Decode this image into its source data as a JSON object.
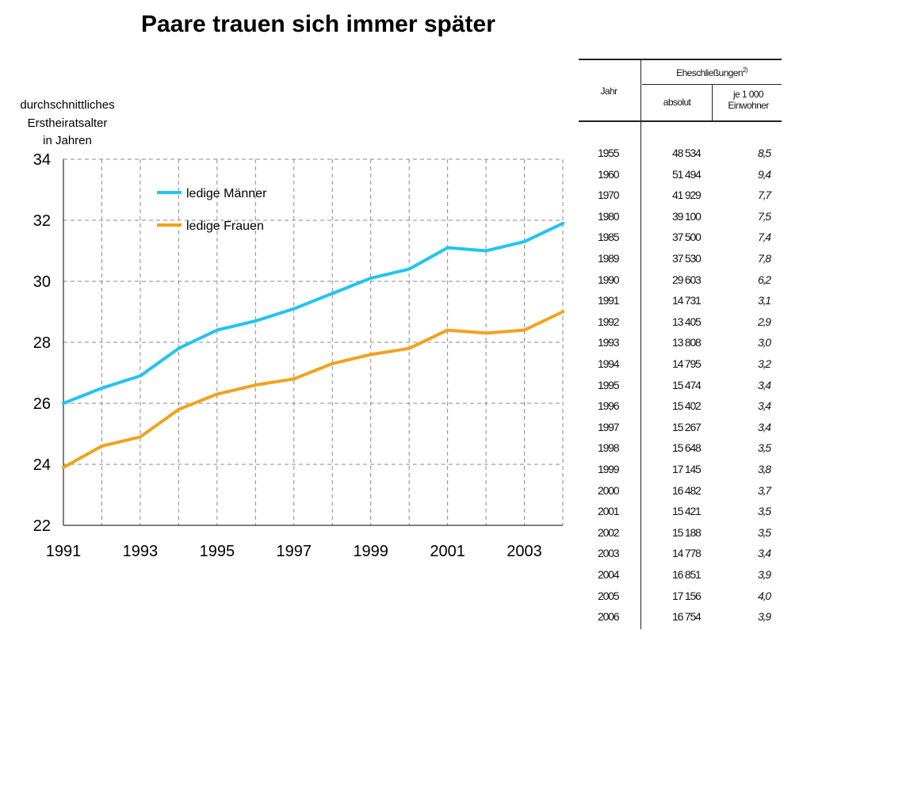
{
  "title": "Paare trauen sich immer später",
  "chart_data": {
    "type": "line",
    "title": "Paare trauen sich immer später",
    "ylabel_lines": [
      "durchschnittliches",
      "Erstheiratsalter",
      "in Jahren"
    ],
    "xlabel": "",
    "x": [
      1991,
      1992,
      1993,
      1994,
      1995,
      1996,
      1997,
      1998,
      1999,
      2000,
      2001,
      2002,
      2003,
      2004
    ],
    "x_tick_labels": [
      "1991",
      "1993",
      "1995",
      "1997",
      "1999",
      "2001",
      "2003"
    ],
    "y_ticks": [
      22,
      24,
      26,
      28,
      30,
      32,
      34
    ],
    "ylim": [
      22,
      34
    ],
    "grid": true,
    "legend_position": "top-left",
    "series": [
      {
        "name": "ledige Männer",
        "color": "#22c4ef",
        "values": [
          26.0,
          26.5,
          26.9,
          27.8,
          28.4,
          28.7,
          29.1,
          29.6,
          30.1,
          30.4,
          31.1,
          31.0,
          31.3,
          31.9
        ]
      },
      {
        "name": "ledige Frauen",
        "color": "#f2a21e",
        "values": [
          23.9,
          24.6,
          24.9,
          25.8,
          26.3,
          26.6,
          26.8,
          27.3,
          27.6,
          27.8,
          28.4,
          28.3,
          28.4,
          29.0
        ]
      }
    ]
  },
  "table": {
    "col_year": "Jahr",
    "col_group": "Eheschließungen",
    "col_group_note": "2)",
    "col_abs": "absolut",
    "col_rate_line1": "je 1 000",
    "col_rate_line2": "Einwohner",
    "rows": [
      {
        "year": "1955",
        "absolut": "48 534",
        "rate": "8,5"
      },
      {
        "year": "1960",
        "absolut": "51 494",
        "rate": "9,4"
      },
      {
        "year": "1970",
        "absolut": "41 929",
        "rate": "7,7"
      },
      {
        "year": "1980",
        "absolut": "39 100",
        "rate": "7,5"
      },
      {
        "year": "1985",
        "absolut": "37 500",
        "rate": "7,4"
      },
      {
        "year": "1989",
        "absolut": "37 530",
        "rate": "7,8"
      },
      {
        "year": "1990",
        "absolut": "29 603",
        "rate": "6,2"
      },
      {
        "year": "1991",
        "absolut": "14 731",
        "rate": "3,1"
      },
      {
        "year": "1992",
        "absolut": "13 405",
        "rate": "2,9"
      },
      {
        "year": "1993",
        "absolut": "13 808",
        "rate": "3,0"
      },
      {
        "year": "1994",
        "absolut": "14 795",
        "rate": "3,2"
      },
      {
        "year": "1995",
        "absolut": "15 474",
        "rate": "3,4"
      },
      {
        "year": "1996",
        "absolut": "15 402",
        "rate": "3,4"
      },
      {
        "year": "1997",
        "absolut": "15 267",
        "rate": "3,4"
      },
      {
        "year": "1998",
        "absolut": "15 648",
        "rate": "3,5"
      },
      {
        "year": "1999",
        "absolut": "17 145",
        "rate": "3,8"
      },
      {
        "year": "2000",
        "absolut": "16 482",
        "rate": "3,7"
      },
      {
        "year": "2001",
        "absolut": "15 421",
        "rate": "3,5"
      },
      {
        "year": "2002",
        "absolut": "15 188",
        "rate": "3,5"
      },
      {
        "year": "2003",
        "absolut": "14 778",
        "rate": "3,4"
      },
      {
        "year": "2004",
        "absolut": "16 851",
        "rate": "3,9"
      },
      {
        "year": "2005",
        "absolut": "17 156",
        "rate": "4,0"
      },
      {
        "year": "2006",
        "absolut": "16 754",
        "rate": "3,9"
      }
    ]
  }
}
